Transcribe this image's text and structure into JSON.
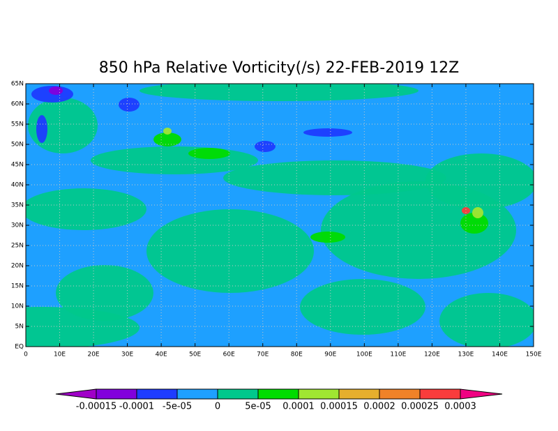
{
  "chart_data": {
    "type": "filled-contour",
    "title": "850 hPa Relative Vorticity(/s) 22-FEB-2019 12Z",
    "xlim": [
      0,
      150
    ],
    "xticks": [
      0,
      {
        "value": 10,
        "label": "10E"
      },
      {
        "value": 20,
        "label": "20E"
      },
      {
        "value": 30,
        "label": "30E"
      },
      {
        "value": 40,
        "label": "40E"
      },
      {
        "value": 50,
        "label": "50E"
      },
      {
        "value": 60,
        "label": "60E"
      },
      {
        "value": 70,
        "label": "70E"
      },
      {
        "value": 80,
        "label": "80E"
      },
      {
        "value": 90,
        "label": "90E"
      },
      {
        "value": 100,
        "label": "100E"
      },
      {
        "value": 110,
        "label": "110E"
      },
      {
        "value": 120,
        "label": "120E"
      },
      {
        "value": 130,
        "label": "130E"
      },
      {
        "value": 140,
        "label": "140E"
      },
      {
        "value": 150,
        "label": "150E"
      }
    ],
    "ylim": [
      0,
      65
    ],
    "yticks": [
      {
        "value": 0,
        "label": "EQ"
      },
      {
        "value": 5,
        "label": "5N"
      },
      {
        "value": 10,
        "label": "10N"
      },
      {
        "value": 15,
        "label": "15N"
      },
      {
        "value": 20,
        "label": "20N"
      },
      {
        "value": 25,
        "label": "25N"
      },
      {
        "value": 30,
        "label": "30N"
      },
      {
        "value": 35,
        "label": "35N"
      },
      {
        "value": 40,
        "label": "40N"
      },
      {
        "value": 45,
        "label": "45N"
      },
      {
        "value": 50,
        "label": "50N"
      },
      {
        "value": 55,
        "label": "55N"
      },
      {
        "value": 60,
        "label": "60N"
      },
      {
        "value": 65,
        "label": "65N"
      }
    ],
    "grid": true,
    "levels": [
      -0.00015,
      -0.0001,
      {
        "value": -5e-05,
        "label": "-5e-05"
      },
      0,
      {
        "value": 5e-05,
        "label": "5e-05"
      },
      0.0001,
      0.00015,
      0.0002,
      0.00025,
      0.0003
    ],
    "colors": [
      "#a000c8",
      "#8200dc",
      "#1e3cff",
      "#1ea0ff",
      "#00c88c",
      "#00dc00",
      "#a0e632",
      "#e6af2d",
      "#f08228",
      "#fa3c3c",
      "#f00082"
    ]
  }
}
